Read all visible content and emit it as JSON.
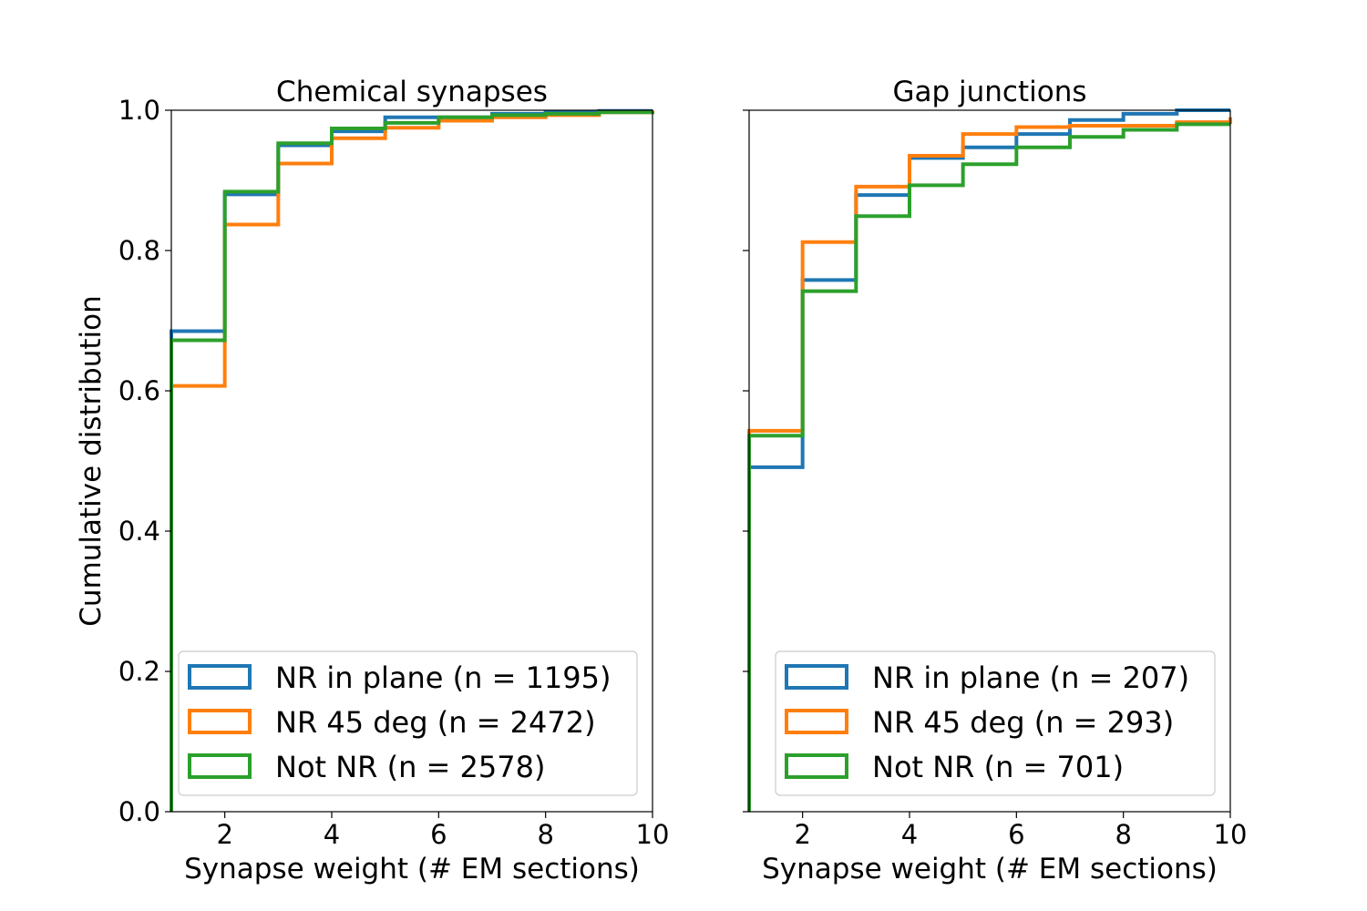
{
  "chart_data": [
    {
      "type": "line",
      "title": "Chemical synapses",
      "xlabel": "Synapse weight (# EM sections)",
      "ylabel": "Cumulative distribution",
      "xlim": [
        1,
        10
      ],
      "ylim": [
        0,
        1
      ],
      "xticks": [
        "2",
        "4",
        "6",
        "8",
        "10"
      ],
      "yticks": [
        "0.0",
        "0.2",
        "0.4",
        "0.6",
        "0.8",
        "1.0"
      ],
      "step": "post",
      "legend_position": "lower-right",
      "series": [
        {
          "name": "NR in plane (n = 1195)",
          "color": "#1f77b4",
          "x": [
            1,
            2,
            3,
            4,
            5,
            6,
            7,
            8,
            9,
            10
          ],
          "y": [
            0.685,
            0.88,
            0.95,
            0.97,
            0.99,
            0.99,
            0.995,
            0.998,
            0.999,
            1.0
          ]
        },
        {
          "name": "NR 45 deg (n = 2472)",
          "color": "#ff7f0e",
          "x": [
            1,
            2,
            3,
            4,
            5,
            6,
            7,
            8,
            9,
            10
          ],
          "y": [
            0.607,
            0.837,
            0.924,
            0.96,
            0.975,
            0.985,
            0.99,
            0.993,
            0.997,
            1.0
          ]
        },
        {
          "name": "Not NR (n = 2578)",
          "color": "#2ca02c",
          "x": [
            1,
            2,
            3,
            4,
            5,
            6,
            7,
            8,
            9,
            10
          ],
          "y": [
            0.672,
            0.884,
            0.953,
            0.974,
            0.982,
            0.99,
            0.993,
            0.995,
            0.997,
            0.998
          ]
        }
      ]
    },
    {
      "type": "line",
      "title": "Gap junctions",
      "xlabel": "Synapse weight (# EM sections)",
      "ylabel": "",
      "xlim": [
        1,
        10
      ],
      "ylim": [
        0,
        1
      ],
      "xticks": [
        "2",
        "4",
        "6",
        "8",
        "10"
      ],
      "yticks": [],
      "step": "post",
      "legend_position": "lower-right",
      "series": [
        {
          "name": "NR in plane (n = 207)",
          "color": "#1f77b4",
          "x": [
            1,
            2,
            3,
            4,
            5,
            6,
            7,
            8,
            9,
            10
          ],
          "y": [
            0.491,
            0.758,
            0.879,
            0.932,
            0.947,
            0.966,
            0.986,
            0.995,
            1.0,
            1.0
          ]
        },
        {
          "name": "NR 45 deg (n = 293)",
          "color": "#ff7f0e",
          "x": [
            1,
            2,
            3,
            4,
            5,
            6,
            7,
            8,
            9,
            10
          ],
          "y": [
            0.543,
            0.812,
            0.891,
            0.935,
            0.966,
            0.976,
            0.978,
            0.978,
            0.983,
            0.99
          ]
        },
        {
          "name": "Not NR (n = 701)",
          "color": "#2ca02c",
          "x": [
            1,
            2,
            3,
            4,
            5,
            6,
            7,
            8,
            9,
            10
          ],
          "y": [
            0.536,
            0.742,
            0.849,
            0.893,
            0.923,
            0.947,
            0.962,
            0.972,
            0.98,
            0.98
          ]
        }
      ]
    }
  ]
}
